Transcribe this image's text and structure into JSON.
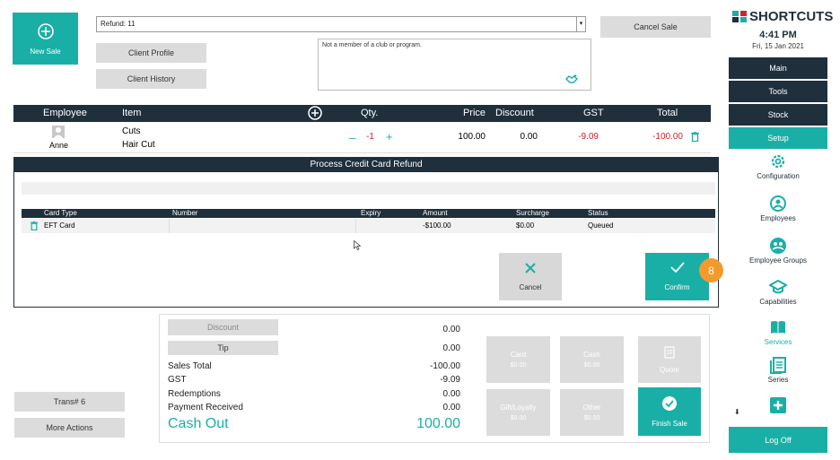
{
  "top": {
    "new_sale_label": "New Sale",
    "refund_value": "Refund: 11",
    "cancel_sale_label": "Cancel Sale",
    "client_profile_label": "Client Profile",
    "client_history_label": "Client History",
    "notes_text": "Not a member of a club or program."
  },
  "table": {
    "headers": {
      "employee": "Employee",
      "item": "Item",
      "qty": "Qty.",
      "price": "Price",
      "discount": "Discount",
      "gst": "GST",
      "total": "Total"
    },
    "row": {
      "employee": "Anne",
      "category": "Cuts",
      "item": "Hair Cut",
      "qty": "-1",
      "price": "100.00",
      "discount": "0.00",
      "gst": "-9.09",
      "total": "-100.00"
    }
  },
  "dialog": {
    "title": "Process Credit Card Refund",
    "headers": {
      "card_type": "Card Type",
      "number": "Number",
      "expiry": "Expiry",
      "amount": "Amount",
      "surcharge": "Surcharge",
      "status": "Status"
    },
    "row": {
      "card_type": "EFT Card",
      "number": "",
      "expiry": "",
      "amount": "-$100.00",
      "surcharge": "$0.00",
      "status": "Queued"
    },
    "cancel_label": "Cancel",
    "confirm_label": "Confirm",
    "step_badge": "8"
  },
  "totals": {
    "discount_label": "Discount",
    "tip_label": "Tip",
    "discount_value": "0.00",
    "tip_value": "0.00",
    "sales_total_label": "Sales Total",
    "sales_total_value": "-100.00",
    "gst_label": "GST",
    "gst_value": "-9.09",
    "redemptions_label": "Redemptions",
    "redemptions_value": "0.00",
    "payment_received_label": "Payment Received",
    "payment_received_value": "0.00",
    "cash_out_label": "Cash Out",
    "cash_out_value": "100.00"
  },
  "payments": {
    "card_label": "Card",
    "card_value": "$0.00",
    "cash_label": "Cash",
    "cash_value": "$0.00",
    "quote_label": "Quote",
    "gift_label": "Gift/Loyalty",
    "gift_value": "$0.00",
    "other_label": "Other",
    "other_value": "$0.00",
    "finish_label": "Finish Sale"
  },
  "left": {
    "trans_label": "Trans# 6",
    "more_actions_label": "More Actions"
  },
  "sidebar": {
    "brand": "SHORTCUTS",
    "time": "4:41 PM",
    "date": "Fri, 15 Jan 2021",
    "main": "Main",
    "tools": "Tools",
    "stock": "Stock",
    "setup": "Setup",
    "items": [
      "Configuration",
      "Employees",
      "Employee Groups",
      "Capabilities",
      "Services",
      "Series"
    ],
    "logoff": "Log Off"
  },
  "colors": {
    "accent": "#1aafa6",
    "dark": "#1f2f3c",
    "negative": "#d0232a",
    "badge": "#f39a2c"
  }
}
